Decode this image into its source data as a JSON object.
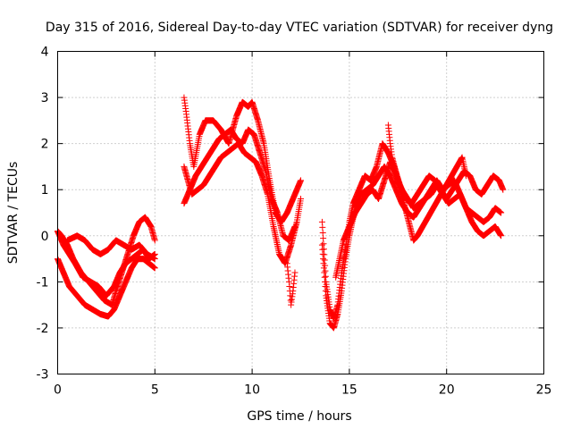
{
  "chart_data": {
    "type": "scatter",
    "title": "Day 315 of 2016, Sidereal Day-to-day VTEC variation (SDTVAR) for receiver dyng",
    "xlabel": "GPS time / hours",
    "ylabel": "SDTVAR / TECUs",
    "xlim": [
      0,
      25
    ],
    "ylim": [
      -3,
      4
    ],
    "xticks": [
      0,
      5,
      10,
      15,
      20,
      25
    ],
    "yticks": [
      -3,
      -2,
      -1,
      0,
      1,
      2,
      3,
      4
    ],
    "grid": true,
    "marker": "+",
    "color": "#ff0000",
    "series": [
      {
        "x": [
          0.0,
          0.2,
          0.5,
          0.8,
          1.2,
          1.6,
          2.0,
          2.4,
          2.8,
          3.0,
          3.3,
          3.6,
          3.9,
          4.2,
          4.5,
          4.8,
          5.0
        ],
        "y": [
          0.1,
          0.0,
          -0.2,
          -0.5,
          -0.8,
          -1.0,
          -1.2,
          -1.4,
          -1.5,
          -1.2,
          -0.8,
          -0.4,
          0.0,
          0.3,
          0.4,
          0.2,
          -0.1
        ]
      },
      {
        "x": [
          0.0,
          0.3,
          0.6,
          1.0,
          1.4,
          1.8,
          2.2,
          2.6,
          2.9,
          3.2,
          3.5,
          3.8,
          4.1,
          4.4,
          4.7,
          5.0
        ],
        "y": [
          -0.5,
          -0.8,
          -1.1,
          -1.3,
          -1.5,
          -1.6,
          -1.7,
          -1.75,
          -1.6,
          -1.3,
          -1.0,
          -0.7,
          -0.5,
          -0.5,
          -0.6,
          -0.7
        ]
      },
      {
        "x": [
          0.0,
          0.3,
          0.6,
          0.9,
          1.3,
          1.7,
          2.1,
          2.5,
          2.9,
          3.2,
          3.5,
          3.8,
          4.1,
          4.4,
          4.7,
          5.0
        ],
        "y": [
          0.1,
          -0.2,
          -0.4,
          -0.6,
          -0.9,
          -1.0,
          -1.1,
          -1.3,
          -1.1,
          -0.8,
          -0.6,
          -0.5,
          -0.4,
          -0.3,
          -0.5,
          -0.4
        ]
      },
      {
        "x": [
          0.5,
          1.0,
          1.4,
          1.8,
          2.2,
          2.6,
          3.0,
          3.4,
          3.8,
          4.2,
          4.6,
          5.0
        ],
        "y": [
          -0.1,
          0.0,
          -0.1,
          -0.3,
          -0.4,
          -0.3,
          -0.1,
          -0.2,
          -0.3,
          -0.2,
          -0.4,
          -0.5
        ]
      },
      {
        "x": [
          6.5,
          6.6,
          6.8,
          7.0,
          7.3,
          7.6,
          8.0,
          8.4,
          8.8,
          9.2,
          9.5,
          9.8,
          10.0,
          10.3,
          10.6,
          10.9,
          11.2,
          11.5,
          11.8,
          12.0,
          12.3,
          12.5
        ],
        "y": [
          3.0,
          2.7,
          2.0,
          1.5,
          2.2,
          2.5,
          2.5,
          2.3,
          2.0,
          2.6,
          2.9,
          2.8,
          2.9,
          2.5,
          2.0,
          1.2,
          0.5,
          0.3,
          0.5,
          0.7,
          1.0,
          1.2
        ]
      },
      {
        "x": [
          6.5,
          6.7,
          6.9,
          7.2,
          7.5,
          7.8,
          8.1,
          8.4,
          8.7,
          9.0,
          9.3,
          9.6,
          9.9,
          10.2,
          10.5,
          10.8,
          11.1,
          11.4,
          11.7,
          12.0,
          12.3,
          12.5
        ],
        "y": [
          1.5,
          1.2,
          0.9,
          1.0,
          1.1,
          1.3,
          1.5,
          1.7,
          1.8,
          1.9,
          2.0,
          1.8,
          1.7,
          1.6,
          1.3,
          0.9,
          0.2,
          -0.4,
          -0.6,
          -0.2,
          0.3,
          0.8
        ]
      },
      {
        "x": [
          6.5,
          6.7,
          6.9,
          7.1,
          7.4,
          7.7,
          8.0,
          8.3,
          8.6,
          8.9,
          9.2,
          9.5,
          9.8,
          10.1,
          10.4,
          10.7,
          11.0,
          11.3,
          11.6,
          11.9,
          12.2
        ],
        "y": [
          0.7,
          0.9,
          1.1,
          1.3,
          1.5,
          1.7,
          1.9,
          2.1,
          2.2,
          2.3,
          2.1,
          2.0,
          2.3,
          2.2,
          1.8,
          1.4,
          0.8,
          0.5,
          0.0,
          -0.1,
          0.2
        ]
      },
      {
        "x": [
          11.8,
          11.9,
          12.0,
          12.1,
          12.2
        ],
        "y": [
          -0.6,
          -1.0,
          -1.5,
          -1.2,
          -0.8
        ]
      },
      {
        "x": [
          13.6,
          13.8,
          14.0,
          14.2,
          14.4,
          14.6,
          14.8,
          15.0,
          15.2,
          15.5,
          15.8,
          16.1,
          16.4,
          16.7,
          17.0,
          17.3,
          17.6,
          17.9,
          18.2,
          18.5,
          18.8,
          19.1,
          19.4,
          19.7,
          20.0,
          20.3,
          20.6,
          20.9,
          21.2,
          21.5,
          21.8,
          22.1,
          22.4,
          22.7,
          22.9
        ],
        "y": [
          0.3,
          -1.0,
          -1.6,
          -1.8,
          -1.5,
          -0.8,
          -0.3,
          0.3,
          0.7,
          1.0,
          1.3,
          1.2,
          1.5,
          2.0,
          1.8,
          1.5,
          1.1,
          0.8,
          0.7,
          0.9,
          1.1,
          1.3,
          1.2,
          1.0,
          0.8,
          1.0,
          1.2,
          1.4,
          1.3,
          1.0,
          0.9,
          1.1,
          1.3,
          1.2,
          1.0
        ]
      },
      {
        "x": [
          13.6,
          13.8,
          14.0,
          14.2,
          14.4,
          14.6,
          14.8,
          15.0,
          15.3,
          15.6,
          15.9,
          16.2,
          16.5,
          16.8,
          17.1,
          17.4,
          17.7,
          18.0,
          18.3,
          18.6,
          18.9,
          19.2,
          19.5,
          19.8,
          20.1,
          20.4,
          20.7,
          21.0,
          21.3,
          21.6,
          21.9,
          22.2,
          22.5,
          22.8
        ],
        "y": [
          -0.2,
          -1.3,
          -1.9,
          -2.0,
          -1.7,
          -1.2,
          -0.5,
          0.0,
          0.6,
          0.9,
          1.0,
          1.1,
          1.3,
          1.5,
          1.3,
          1.0,
          0.7,
          0.5,
          0.4,
          0.6,
          0.8,
          1.0,
          1.2,
          1.0,
          1.1,
          1.2,
          0.9,
          0.6,
          0.5,
          0.4,
          0.3,
          0.4,
          0.6,
          0.5
        ]
      },
      {
        "x": [
          14.3,
          14.5,
          14.7,
          15.0,
          15.3,
          15.6,
          15.9,
          16.2,
          16.5,
          16.8,
          17.1,
          17.4,
          17.7,
          18.0,
          18.3,
          18.6,
          18.9,
          19.2,
          19.5,
          19.8,
          20.1,
          20.4,
          20.7,
          21.0,
          21.3,
          21.6,
          21.9,
          22.2,
          22.5,
          22.8
        ],
        "y": [
          -0.9,
          -0.5,
          -0.1,
          0.2,
          0.5,
          0.7,
          0.9,
          1.0,
          0.8,
          1.2,
          1.6,
          1.3,
          1.0,
          0.8,
          0.6,
          0.7,
          0.8,
          0.9,
          1.1,
          0.9,
          0.7,
          0.8,
          0.9,
          0.6,
          0.3,
          0.1,
          0.0,
          0.1,
          0.2,
          0.0
        ]
      },
      {
        "x": [
          17.0,
          17.1,
          17.2,
          18.3,
          18.5,
          20.8,
          20.9,
          21.0
        ],
        "y": [
          2.4,
          2.0,
          1.7,
          -0.1,
          0.0,
          1.7,
          1.5,
          1.3
        ]
      }
    ]
  }
}
